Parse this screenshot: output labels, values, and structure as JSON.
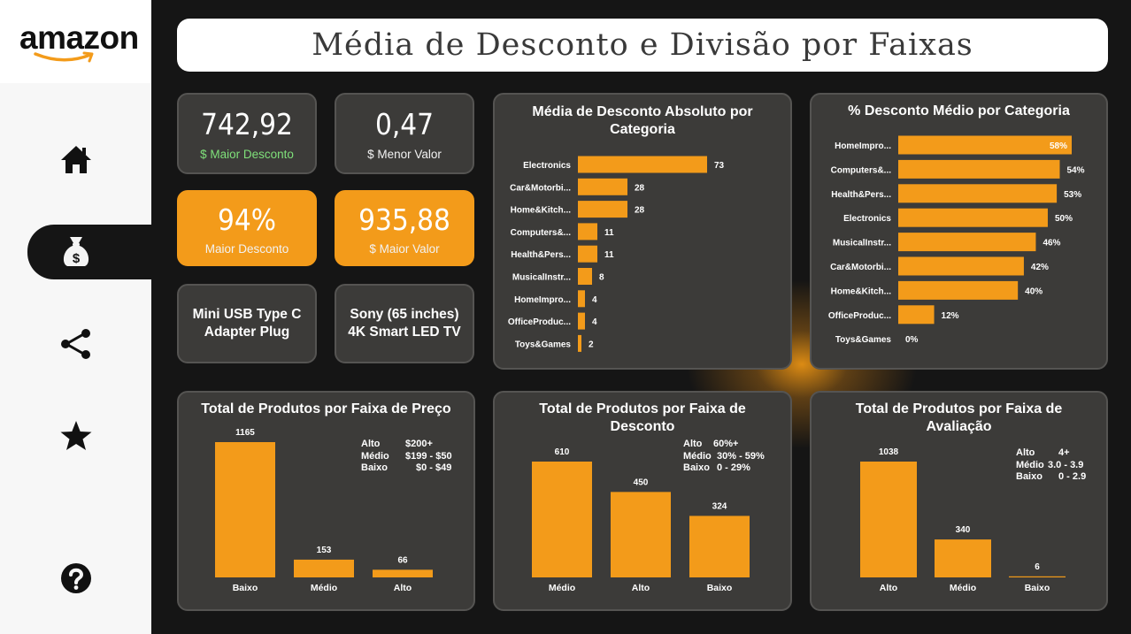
{
  "brand": {
    "logo_text": "amazon"
  },
  "title": "Média de Desconto e Divisão por Faixas",
  "nav": [
    "home-icon",
    "money-bag-icon",
    "share-icon",
    "star-icon",
    "help-icon"
  ],
  "colors": {
    "accent": "#f39b1a",
    "panel": "#3c3b39",
    "background": "#151515",
    "positive": "#7fe07a"
  },
  "kpis": [
    {
      "value": "742,92",
      "label": "$ Maior Desconto"
    },
    {
      "value": "0,47",
      "label": "$ Menor Valor"
    },
    {
      "value": "94%",
      "label": "Maior Desconto"
    },
    {
      "value": "935,88",
      "label": "$ Maior Valor"
    }
  ],
  "products": [
    "Mini USB Type C Adapter Plug",
    "Sony (65 inches) 4K Smart LED TV"
  ],
  "chart_data": [
    {
      "type": "bar",
      "orientation": "horizontal",
      "title": "Média de Desconto Absoluto por Categoria",
      "categories": [
        "Electronics",
        "Car&Motorbi...",
        "Home&Kitch...",
        "Computers&...",
        "Health&Pers...",
        "MusicalInstr...",
        "HomeImpro...",
        "OfficeProduc...",
        "Toys&Games"
      ],
      "values": [
        73,
        28,
        28,
        11,
        11,
        8,
        4,
        4,
        2
      ],
      "labels": [
        "73",
        "28",
        "28",
        "11",
        "11",
        "8",
        "4",
        "4",
        "2"
      ]
    },
    {
      "type": "bar",
      "orientation": "horizontal",
      "title": "% Desconto Médio por Categoria",
      "categories": [
        "HomeImpro...",
        "Computers&...",
        "Health&Pers...",
        "Electronics",
        "MusicalInstr...",
        "Car&Motorbi...",
        "Home&Kitch...",
        "OfficeProduc...",
        "Toys&Games"
      ],
      "values": [
        58,
        54,
        53,
        50,
        46,
        42,
        40,
        12,
        0
      ],
      "labels": [
        "58%",
        "54%",
        "53%",
        "50%",
        "46%",
        "42%",
        "40%",
        "12%",
        "0%"
      ]
    },
    {
      "type": "bar",
      "title": "Total de Produtos por Faixa de Preço",
      "categories": [
        "Baixo",
        "Médio",
        "Alto"
      ],
      "values": [
        1165,
        153,
        66
      ],
      "labels": [
        "1165",
        "153",
        "66"
      ],
      "legend": [
        [
          "Alto",
          "$200+"
        ],
        [
          "Médio",
          "$199 - $50"
        ],
        [
          "Baixo",
          "$0 - $49"
        ]
      ]
    },
    {
      "type": "bar",
      "title": "Total de Produtos por Faixa de Desconto",
      "categories": [
        "Médio",
        "Alto",
        "Baixo"
      ],
      "values": [
        610,
        450,
        324
      ],
      "labels": [
        "610",
        "450",
        "324"
      ],
      "legend": [
        [
          "Alto",
          "60%+"
        ],
        [
          "Médio",
          "30% - 59%"
        ],
        [
          "Baixo",
          "0 - 29%"
        ]
      ]
    },
    {
      "type": "bar",
      "title": "Total de Produtos por Faixa de Avaliação",
      "categories": [
        "Alto",
        "Médio",
        "Baixo"
      ],
      "values": [
        1038,
        340,
        6
      ],
      "labels": [
        "1038",
        "340",
        "6"
      ],
      "legend": [
        [
          "Alto",
          "4+"
        ],
        [
          "Médio",
          "3.0 - 3.9"
        ],
        [
          "Baixo",
          "0 - 2.9"
        ]
      ]
    }
  ]
}
